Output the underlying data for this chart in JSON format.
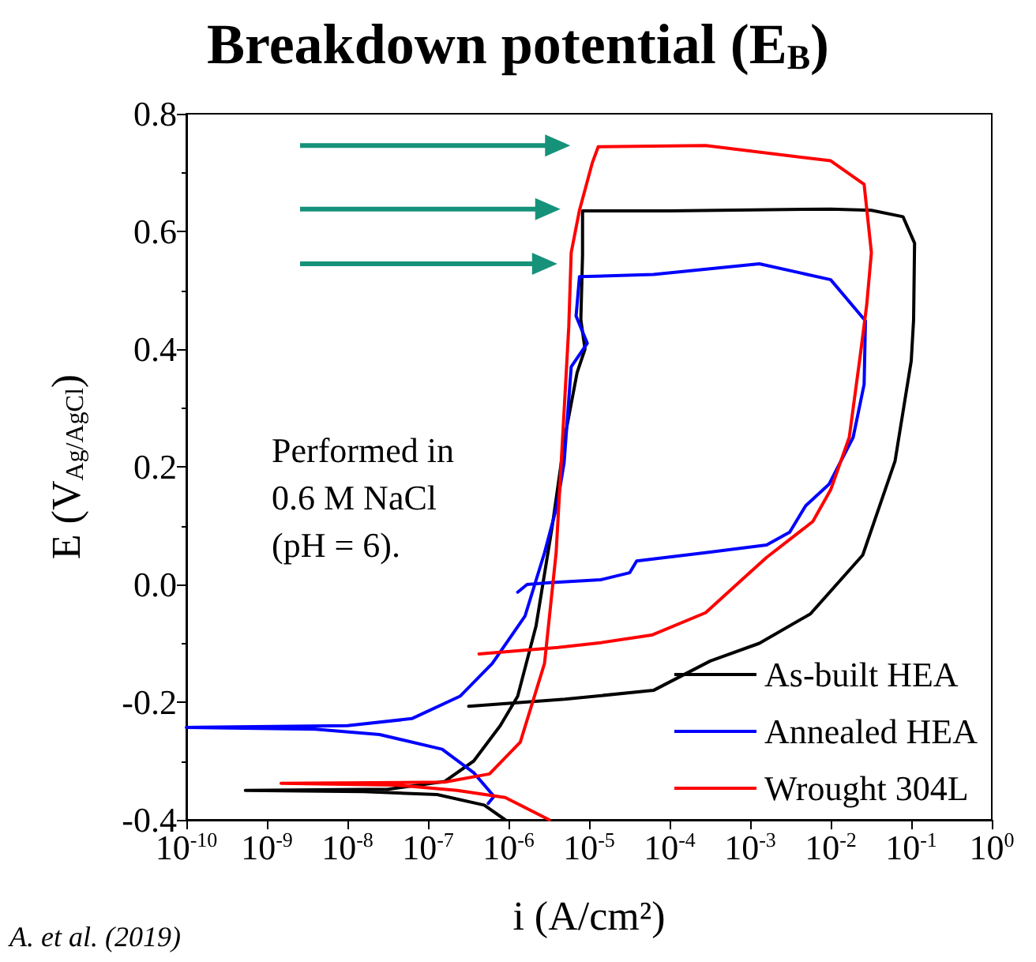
{
  "chart_data": {
    "type": "line",
    "title": "Breakdown potential (E$_{B}$)",
    "xlabel": "i (A/cm²)",
    "ylabel": "E (V$_{Ag/AgCl}$)",
    "log": "x",
    "xlim": [
      1e-10,
      1
    ],
    "ylim": [
      -0.4,
      0.8
    ],
    "xticks": [
      {
        "value": 1e-10,
        "label": "10$^{-10}$"
      },
      {
        "value": 1e-09,
        "label": "10$^{-9}$"
      },
      {
        "value": 1e-08,
        "label": "10$^{-8}$"
      },
      {
        "value": 1e-07,
        "label": "10$^{-7}$"
      },
      {
        "value": 1e-06,
        "label": "10$^{-6}$"
      },
      {
        "value": 1e-05,
        "label": "10$^{-5}$"
      },
      {
        "value": 0.0001,
        "label": "10$^{-4}$"
      },
      {
        "value": 0.001,
        "label": "10$^{-3}$"
      },
      {
        "value": 0.01,
        "label": "10$^{-2}$"
      },
      {
        "value": 0.1,
        "label": "10$^{-1}$"
      },
      {
        "value": 1,
        "label": "10$^{0}$"
      }
    ],
    "yticks": [
      {
        "value": -0.4,
        "label": "-0.4"
      },
      {
        "value": -0.2,
        "label": "-0.2"
      },
      {
        "value": 0,
        "label": "0.0"
      },
      {
        "value": 0.2,
        "label": "0.2"
      },
      {
        "value": 0.4,
        "label": "0.4"
      },
      {
        "value": 0.6,
        "label": "0.6"
      },
      {
        "value": 0.8,
        "label": "0.8"
      }
    ],
    "grid": false,
    "legend": "bottom right",
    "marker": "none",
    "line_style": "solid",
    "annotations": [
      "Performed in\n0.6 M NaCl\n(pH = 6).",
      "A. et al. (2019)"
    ],
    "series": [
      {
        "name": "As-built HEA",
        "color": "#000000",
        "x": [
          9.1e-07,
          5e-07,
          1.3e-07,
          1.6e-08,
          5.4e-10,
          3.2e-08,
          1.6e-07,
          3.7e-07,
          7.9e-07,
          1.3e-06,
          2.2e-06,
          3.5e-06,
          5e-06,
          7.1e-06,
          8.9e-06,
          7.9e-06,
          8.3e-06,
          8.3e-06,
          0.0001,
          0.01,
          0.032,
          0.079,
          0.11,
          0.107,
          0.1,
          0.063,
          0.025,
          0.0056,
          0.0013,
          0.00032,
          6.3e-05,
          5e-06,
          3.2e-07
        ],
        "values": [
          -0.4,
          -0.375,
          -0.357,
          -0.352,
          -0.35,
          -0.348,
          -0.335,
          -0.3,
          -0.24,
          -0.19,
          -0.07,
          0.1,
          0.25,
          0.36,
          0.4,
          0.45,
          0.56,
          0.635,
          0.635,
          0.638,
          0.636,
          0.625,
          0.58,
          0.45,
          0.38,
          0.21,
          0.05,
          -0.05,
          -0.1,
          -0.13,
          -0.18,
          -0.195,
          -0.207
        ]
      },
      {
        "name": "Annealed HEA",
        "color": "#0000ff",
        "x": [
          5.6e-07,
          6.6e-07,
          3.7e-07,
          1.5e-07,
          2.5e-08,
          4e-09,
          1e-10,
          1e-08,
          6.3e-08,
          2.5e-07,
          6.3e-07,
          1.6e-06,
          2.8e-06,
          4e-06,
          4.9e-06,
          6e-06,
          9.5e-06,
          6.9e-06,
          7.6e-06,
          6.3e-05,
          0.0013,
          0.01,
          0.027,
          0.026,
          0.019,
          0.0095,
          0.0049,
          0.0031,
          0.0016,
          0.00032,
          3.9e-05,
          3.2e-05,
          1.4e-05,
          3.2e-06,
          1.7e-06,
          1.3e-06
        ],
        "values": [
          -0.372,
          -0.36,
          -0.32,
          -0.28,
          -0.255,
          -0.246,
          -0.243,
          -0.24,
          -0.228,
          -0.19,
          -0.134,
          -0.054,
          0.054,
          0.134,
          0.207,
          0.37,
          0.41,
          0.456,
          0.523,
          0.527,
          0.545,
          0.518,
          0.448,
          0.34,
          0.25,
          0.17,
          0.134,
          0.089,
          0.067,
          0.055,
          0.04,
          0.02,
          0.008,
          0.003,
          0.0,
          -0.013
        ]
      },
      {
        "name": "Wrought 304L",
        "color": "#ff0000",
        "x": [
          3.2e-06,
          9.1e-07,
          2.3e-07,
          4e-08,
          1.5e-09,
          1.6e-07,
          5.8e-07,
          1.4e-06,
          2.8e-06,
          3.9e-06,
          4.9e-06,
          5.6e-06,
          6e-06,
          7.6e-06,
          1.1e-05,
          1.3e-05,
          0.00028,
          0.01,
          0.026,
          0.032,
          0.028,
          0.023,
          0.017,
          0.01,
          0.006,
          0.0016,
          0.00079,
          0.00028,
          6e-05,
          1.4e-05,
          4.1e-06,
          4.3e-07
        ],
        "values": [
          -0.4,
          -0.362,
          -0.35,
          -0.341,
          -0.338,
          -0.336,
          -0.322,
          -0.268,
          -0.134,
          0.054,
          0.295,
          0.438,
          0.564,
          0.636,
          0.717,
          0.744,
          0.746,
          0.72,
          0.68,
          0.564,
          0.475,
          0.384,
          0.25,
          0.161,
          0.107,
          0.046,
          0.008,
          -0.048,
          -0.086,
          -0.099,
          -0.107,
          -0.118
        ]
      }
    ]
  }
}
